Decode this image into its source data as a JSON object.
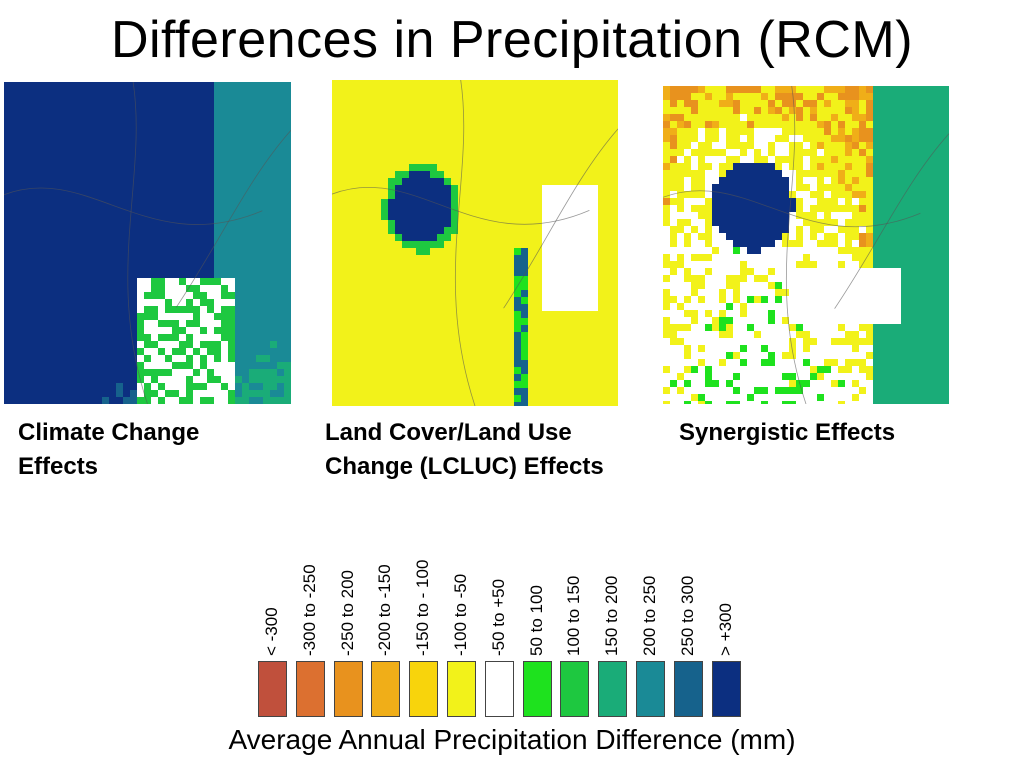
{
  "title": "Differences in Precipitation (RCM)",
  "panels": [
    {
      "id": "climate",
      "caption_line1": "Climate Change",
      "caption_line2": "Effects"
    },
    {
      "id": "lcluc",
      "caption_line1": "Land Cover/Land Use",
      "caption_line2": "Change (LCLUC) Effects"
    },
    {
      "id": "syn",
      "caption_line1": "Synergistic Effects",
      "caption_line2": ""
    }
  ],
  "legend": {
    "caption": "Average Annual Precipitation Difference (mm)",
    "classes": [
      {
        "label": "< -300",
        "color": "#c0503c"
      },
      {
        "label": "-300 to -250",
        "color": "#dc7030"
      },
      {
        "label": "-250 to 200",
        "color": "#e8921e"
      },
      {
        "label": "-200 to -150",
        "color": "#f0ae18"
      },
      {
        "label": "-150 to - 100",
        "color": "#f8d40c"
      },
      {
        "label": "-100 to -50",
        "color": "#f2f21a"
      },
      {
        "label": "-50 to +50",
        "color": "#ffffff"
      },
      {
        "label": "50 to 100",
        "color": "#1ee21e"
      },
      {
        "label": "100 to 150",
        "color": "#1ec840"
      },
      {
        "label": "150 to 200",
        "color": "#1aac78"
      },
      {
        "label": "200 to 250",
        "color": "#1a8a96"
      },
      {
        "label": "250 to 300",
        "color": "#16628c"
      },
      {
        "label": "> +300",
        "color": "#0c2f80"
      }
    ]
  }
}
